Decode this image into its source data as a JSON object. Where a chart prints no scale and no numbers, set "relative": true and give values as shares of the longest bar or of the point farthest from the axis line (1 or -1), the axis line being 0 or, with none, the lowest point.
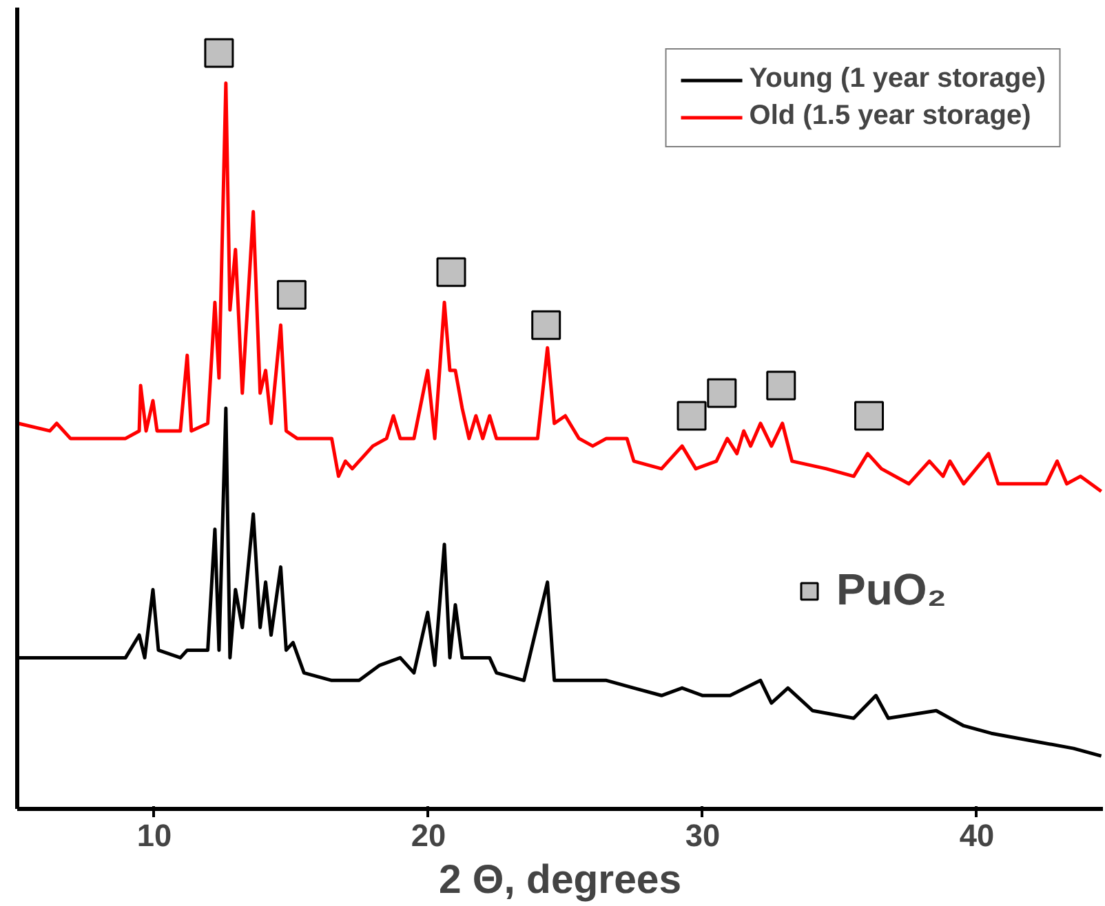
{
  "chart_data": {
    "type": "line",
    "xlabel": "2 Θ, degrees",
    "relative": true,
    "xlim": [
      5,
      44.6
    ],
    "xticks": [
      10,
      20,
      30,
      40
    ],
    "legend": "top right",
    "grid": false,
    "series": [
      {
        "name": "Young (1 year storage)",
        "color": "#000000",
        "x": [
          5.04,
          6.19,
          7.44,
          8.95,
          9.45,
          9.65,
          9.95,
          10.15,
          10.95,
          11.2,
          11.95,
          12.21,
          12.36,
          12.61,
          12.76,
          12.96,
          13.21,
          13.61,
          13.86,
          14.06,
          14.26,
          14.61,
          14.81,
          15.06,
          15.46,
          16.47,
          17.47,
          18.22,
          18.97,
          19.47,
          19.97,
          20.23,
          20.58,
          20.78,
          20.98,
          21.23,
          21.73,
          22.23,
          22.48,
          23.48,
          24.34,
          24.59,
          25.49,
          26.49,
          27.49,
          28.5,
          29.25,
          30.0,
          31.0,
          32.11,
          32.51,
          33.11,
          34.01,
          35.51,
          36.32,
          36.77,
          38.52,
          39.52,
          40.53,
          42.03,
          43.53,
          44.54
        ],
        "values": [
          0.2,
          0.2,
          0.2,
          0.2,
          0.23,
          0.2,
          0.29,
          0.21,
          0.2,
          0.21,
          0.21,
          0.37,
          0.21,
          0.53,
          0.2,
          0.29,
          0.24,
          0.39,
          0.24,
          0.3,
          0.23,
          0.32,
          0.21,
          0.22,
          0.18,
          0.17,
          0.17,
          0.19,
          0.2,
          0.18,
          0.26,
          0.19,
          0.35,
          0.2,
          0.27,
          0.2,
          0.2,
          0.2,
          0.18,
          0.17,
          0.3,
          0.17,
          0.17,
          0.17,
          0.16,
          0.15,
          0.16,
          0.15,
          0.15,
          0.17,
          0.14,
          0.16,
          0.13,
          0.12,
          0.15,
          0.12,
          0.13,
          0.11,
          0.1,
          0.09,
          0.08,
          0.07
        ]
      },
      {
        "name": "Old (1.5 year storage)",
        "color": "#ff0000",
        "x": [
          5.04,
          6.19,
          6.44,
          6.94,
          8.95,
          9.45,
          9.5,
          9.7,
          9.95,
          10.1,
          10.95,
          11.2,
          11.35,
          11.95,
          12.21,
          12.36,
          12.61,
          12.76,
          12.96,
          13.21,
          13.61,
          13.86,
          14.06,
          14.26,
          14.61,
          14.81,
          15.21,
          16.47,
          16.72,
          16.97,
          17.22,
          17.97,
          18.47,
          18.72,
          18.97,
          19.47,
          19.97,
          20.23,
          20.58,
          20.78,
          20.98,
          21.23,
          21.48,
          21.73,
          21.98,
          22.23,
          22.48,
          22.98,
          23.48,
          23.98,
          24.34,
          24.59,
          24.99,
          25.49,
          25.99,
          26.49,
          27.24,
          27.49,
          28.5,
          29.25,
          29.75,
          30.5,
          30.9,
          31.25,
          31.5,
          31.75,
          32.11,
          32.51,
          32.91,
          33.26,
          34.51,
          35.51,
          36.02,
          36.52,
          37.52,
          38.27,
          38.77,
          39.02,
          39.52,
          40.43,
          40.78,
          42.53,
          42.93,
          43.28,
          43.78,
          44.54
        ],
        "values": [
          0.51,
          0.5,
          0.51,
          0.49,
          0.49,
          0.5,
          0.56,
          0.5,
          0.54,
          0.5,
          0.5,
          0.6,
          0.5,
          0.51,
          0.67,
          0.57,
          0.96,
          0.66,
          0.74,
          0.55,
          0.79,
          0.55,
          0.58,
          0.51,
          0.64,
          0.5,
          0.49,
          0.49,
          0.44,
          0.46,
          0.45,
          0.48,
          0.49,
          0.52,
          0.49,
          0.49,
          0.58,
          0.49,
          0.67,
          0.58,
          0.58,
          0.53,
          0.49,
          0.52,
          0.49,
          0.52,
          0.49,
          0.49,
          0.49,
          0.49,
          0.61,
          0.51,
          0.52,
          0.49,
          0.48,
          0.49,
          0.49,
          0.46,
          0.45,
          0.48,
          0.45,
          0.46,
          0.49,
          0.47,
          0.5,
          0.48,
          0.51,
          0.48,
          0.51,
          0.46,
          0.45,
          0.44,
          0.47,
          0.45,
          0.43,
          0.46,
          0.44,
          0.46,
          0.43,
          0.47,
          0.43,
          0.43,
          0.46,
          0.43,
          0.44,
          0.42
        ]
      },
      {
        "name": "PuO₂",
        "type": "scatter",
        "marker": "square",
        "color": "#c0c0c0",
        "x": [
          12.36,
          15.01,
          20.83,
          24.29,
          29.6,
          30.7,
          32.86,
          36.07
        ],
        "values": [
          1.0,
          0.68,
          0.71,
          0.64,
          0.52,
          0.55,
          0.56,
          0.52
        ]
      }
    ]
  }
}
